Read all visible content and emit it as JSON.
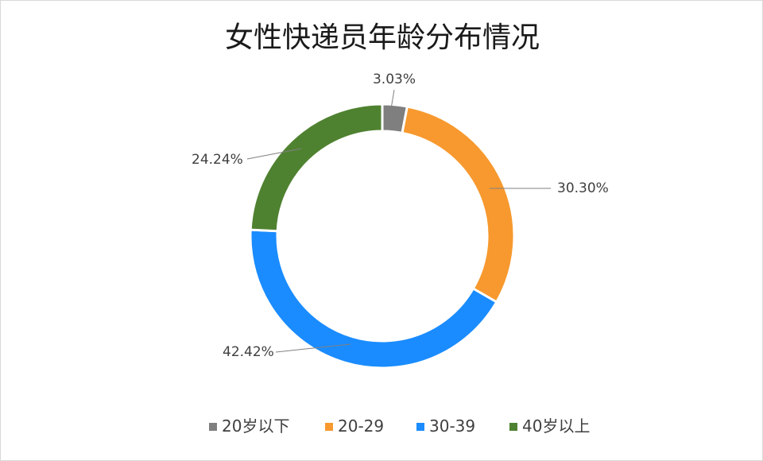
{
  "chart_data": {
    "type": "pie",
    "variant": "donut",
    "title": "女性快递员年龄分布情况",
    "categories": [
      "20岁以下",
      "20-29",
      "30-39",
      "40岁以上"
    ],
    "values": [
      3.03,
      30.3,
      42.42,
      24.24
    ],
    "labels": [
      "3.03%",
      "30.30%",
      "42.42%",
      "24.24%"
    ],
    "colors": [
      "#7f7f7f",
      "#f7992e",
      "#1a8cff",
      "#4f8230"
    ],
    "legend_position": "bottom",
    "start_angle": "top, clockwise"
  }
}
